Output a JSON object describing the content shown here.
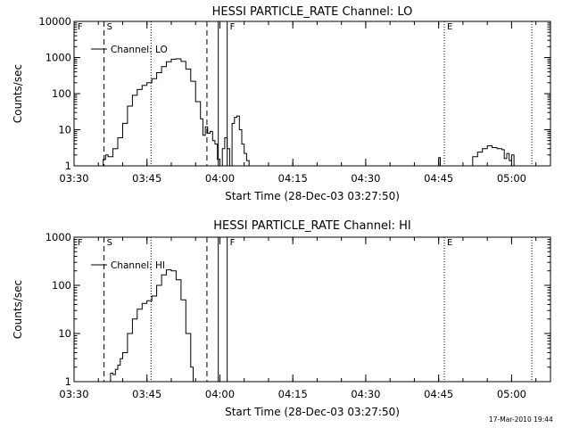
{
  "chart_data": [
    {
      "type": "line",
      "title": "HESSI PARTICLE_RATE Channel: LO",
      "xlabel": "Start Time (28-Dec-03 03:27:50)",
      "ylabel": "Counts/sec",
      "yscale": "log",
      "ylim": [
        1,
        10000
      ],
      "xlim": [
        "03:30",
        "05:08"
      ],
      "grid": false,
      "legend_position": "top-left",
      "x_ticks": [
        "03:30",
        "03:45",
        "04:00",
        "04:15",
        "04:30",
        "04:45",
        "05:00"
      ],
      "y_ticks": [
        "1",
        "10",
        "100",
        "1000",
        "10000"
      ],
      "series": [
        {
          "name": "Channel: LO",
          "x": [
            "03:35:30",
            "03:36:00",
            "03:36:30",
            "03:37:00",
            "03:38:00",
            "03:39:00",
            "03:40:00",
            "03:41:00",
            "03:42:00",
            "03:43:00",
            "03:44:00",
            "03:45:00",
            "03:46:00",
            "03:47:00",
            "03:48:00",
            "03:49:00",
            "03:50:00",
            "03:51:00",
            "03:52:00",
            "03:53:00",
            "03:54:00",
            "03:55:00",
            "03:56:00",
            "03:56:30",
            "03:57:00",
            "03:57:30",
            "03:58:00",
            "03:58:30",
            "03:59:00",
            "03:59:30",
            "04:00:00",
            "04:00:30",
            "04:01:00",
            "04:01:30",
            "04:02:00",
            "04:02:30",
            "04:03:00",
            "04:03:30",
            "04:04:00",
            "04:04:30",
            "04:05:00",
            "04:05:30",
            "04:06:00",
            "04:06:30"
          ],
          "values": [
            1,
            1.5,
            2,
            1.8,
            3,
            6,
            15,
            45,
            90,
            130,
            170,
            200,
            260,
            380,
            560,
            760,
            900,
            920,
            780,
            480,
            220,
            60,
            20,
            7,
            12,
            8,
            9,
            5,
            4,
            1.5,
            1,
            3,
            6,
            3,
            1,
            15,
            22,
            24,
            10,
            4,
            2.2,
            1.4,
            1,
            1
          ]
        },
        {
          "name": "",
          "x": [
            "04:44:40",
            "04:45:00",
            "04:45:20"
          ],
          "values": [
            1,
            1.7,
            1
          ]
        },
        {
          "name": "",
          "x": [
            "04:51:40",
            "04:52:00",
            "04:53:00",
            "04:54:00",
            "04:55:00",
            "04:56:00",
            "04:57:00",
            "04:58:00",
            "04:58:30",
            "04:59:00",
            "04:59:30",
            "05:00:00",
            "05:00:30",
            "05:01:00"
          ],
          "values": [
            1,
            1.8,
            2.4,
            3,
            3.6,
            3.2,
            3,
            2.8,
            1.6,
            2.2,
            1.4,
            2,
            1,
            1
          ]
        }
      ],
      "markers": [
        {
          "label": "F",
          "time": "03:30:10",
          "style": "solid",
          "show_line": false
        },
        {
          "label": "S",
          "time": "03:36:10",
          "style": "dashed",
          "show_line": true
        },
        {
          "label": "",
          "time": "03:45:50",
          "style": "dotted",
          "show_line": true
        },
        {
          "label": "",
          "time": "03:57:20",
          "style": "dashed",
          "show_line": true
        },
        {
          "label": "",
          "time": "03:59:40",
          "style": "solid",
          "show_line": true
        },
        {
          "label": "F",
          "time": "04:01:30",
          "style": "solid",
          "show_line": true
        },
        {
          "label": "E",
          "time": "04:46:10",
          "style": "dotted",
          "show_line": true
        },
        {
          "label": "",
          "time": "05:04:10",
          "style": "dotted",
          "show_line": true
        }
      ]
    },
    {
      "type": "line",
      "title": "HESSI PARTICLE_RATE Channel: HI",
      "xlabel": "Start Time (28-Dec-03 03:27:50)",
      "ylabel": "Counts/sec",
      "yscale": "log",
      "ylim": [
        1,
        1000
      ],
      "xlim": [
        "03:30",
        "05:08"
      ],
      "grid": false,
      "legend_position": "top-left",
      "x_ticks": [
        "03:30",
        "03:45",
        "04:00",
        "04:15",
        "04:30",
        "04:45",
        "05:00"
      ],
      "y_ticks": [
        "1",
        "10",
        "100",
        "1000"
      ],
      "series": [
        {
          "name": "Channel: HI",
          "x": [
            "03:37:00",
            "03:37:30",
            "03:38:00",
            "03:38:30",
            "03:39:00",
            "03:39:30",
            "03:40:00",
            "03:41:00",
            "03:42:00",
            "03:43:00",
            "03:44:00",
            "03:45:00",
            "03:46:00",
            "03:47:00",
            "03:48:00",
            "03:49:00",
            "03:50:00",
            "03:51:00",
            "03:52:00",
            "03:53:00",
            "03:54:00",
            "03:54:30"
          ],
          "values": [
            1,
            1.5,
            1.4,
            1.8,
            2.2,
            3,
            4,
            10,
            20,
            32,
            42,
            48,
            60,
            100,
            165,
            210,
            200,
            130,
            50,
            10,
            2,
            1
          ]
        }
      ],
      "markers": [
        {
          "label": "F",
          "time": "03:30:10",
          "style": "solid",
          "show_line": false
        },
        {
          "label": "S",
          "time": "03:36:10",
          "style": "dashed",
          "show_line": true
        },
        {
          "label": "",
          "time": "03:45:50",
          "style": "dotted",
          "show_line": true
        },
        {
          "label": "",
          "time": "03:57:20",
          "style": "dashed",
          "show_line": true
        },
        {
          "label": "",
          "time": "03:59:40",
          "style": "solid",
          "show_line": true
        },
        {
          "label": "F",
          "time": "04:01:30",
          "style": "solid",
          "show_line": true
        },
        {
          "label": "E",
          "time": "04:46:10",
          "style": "dotted",
          "show_line": true
        },
        {
          "label": "",
          "time": "05:04:10",
          "style": "dotted",
          "show_line": true
        }
      ]
    }
  ],
  "timestamp": "17-Mar-2010 19:44"
}
